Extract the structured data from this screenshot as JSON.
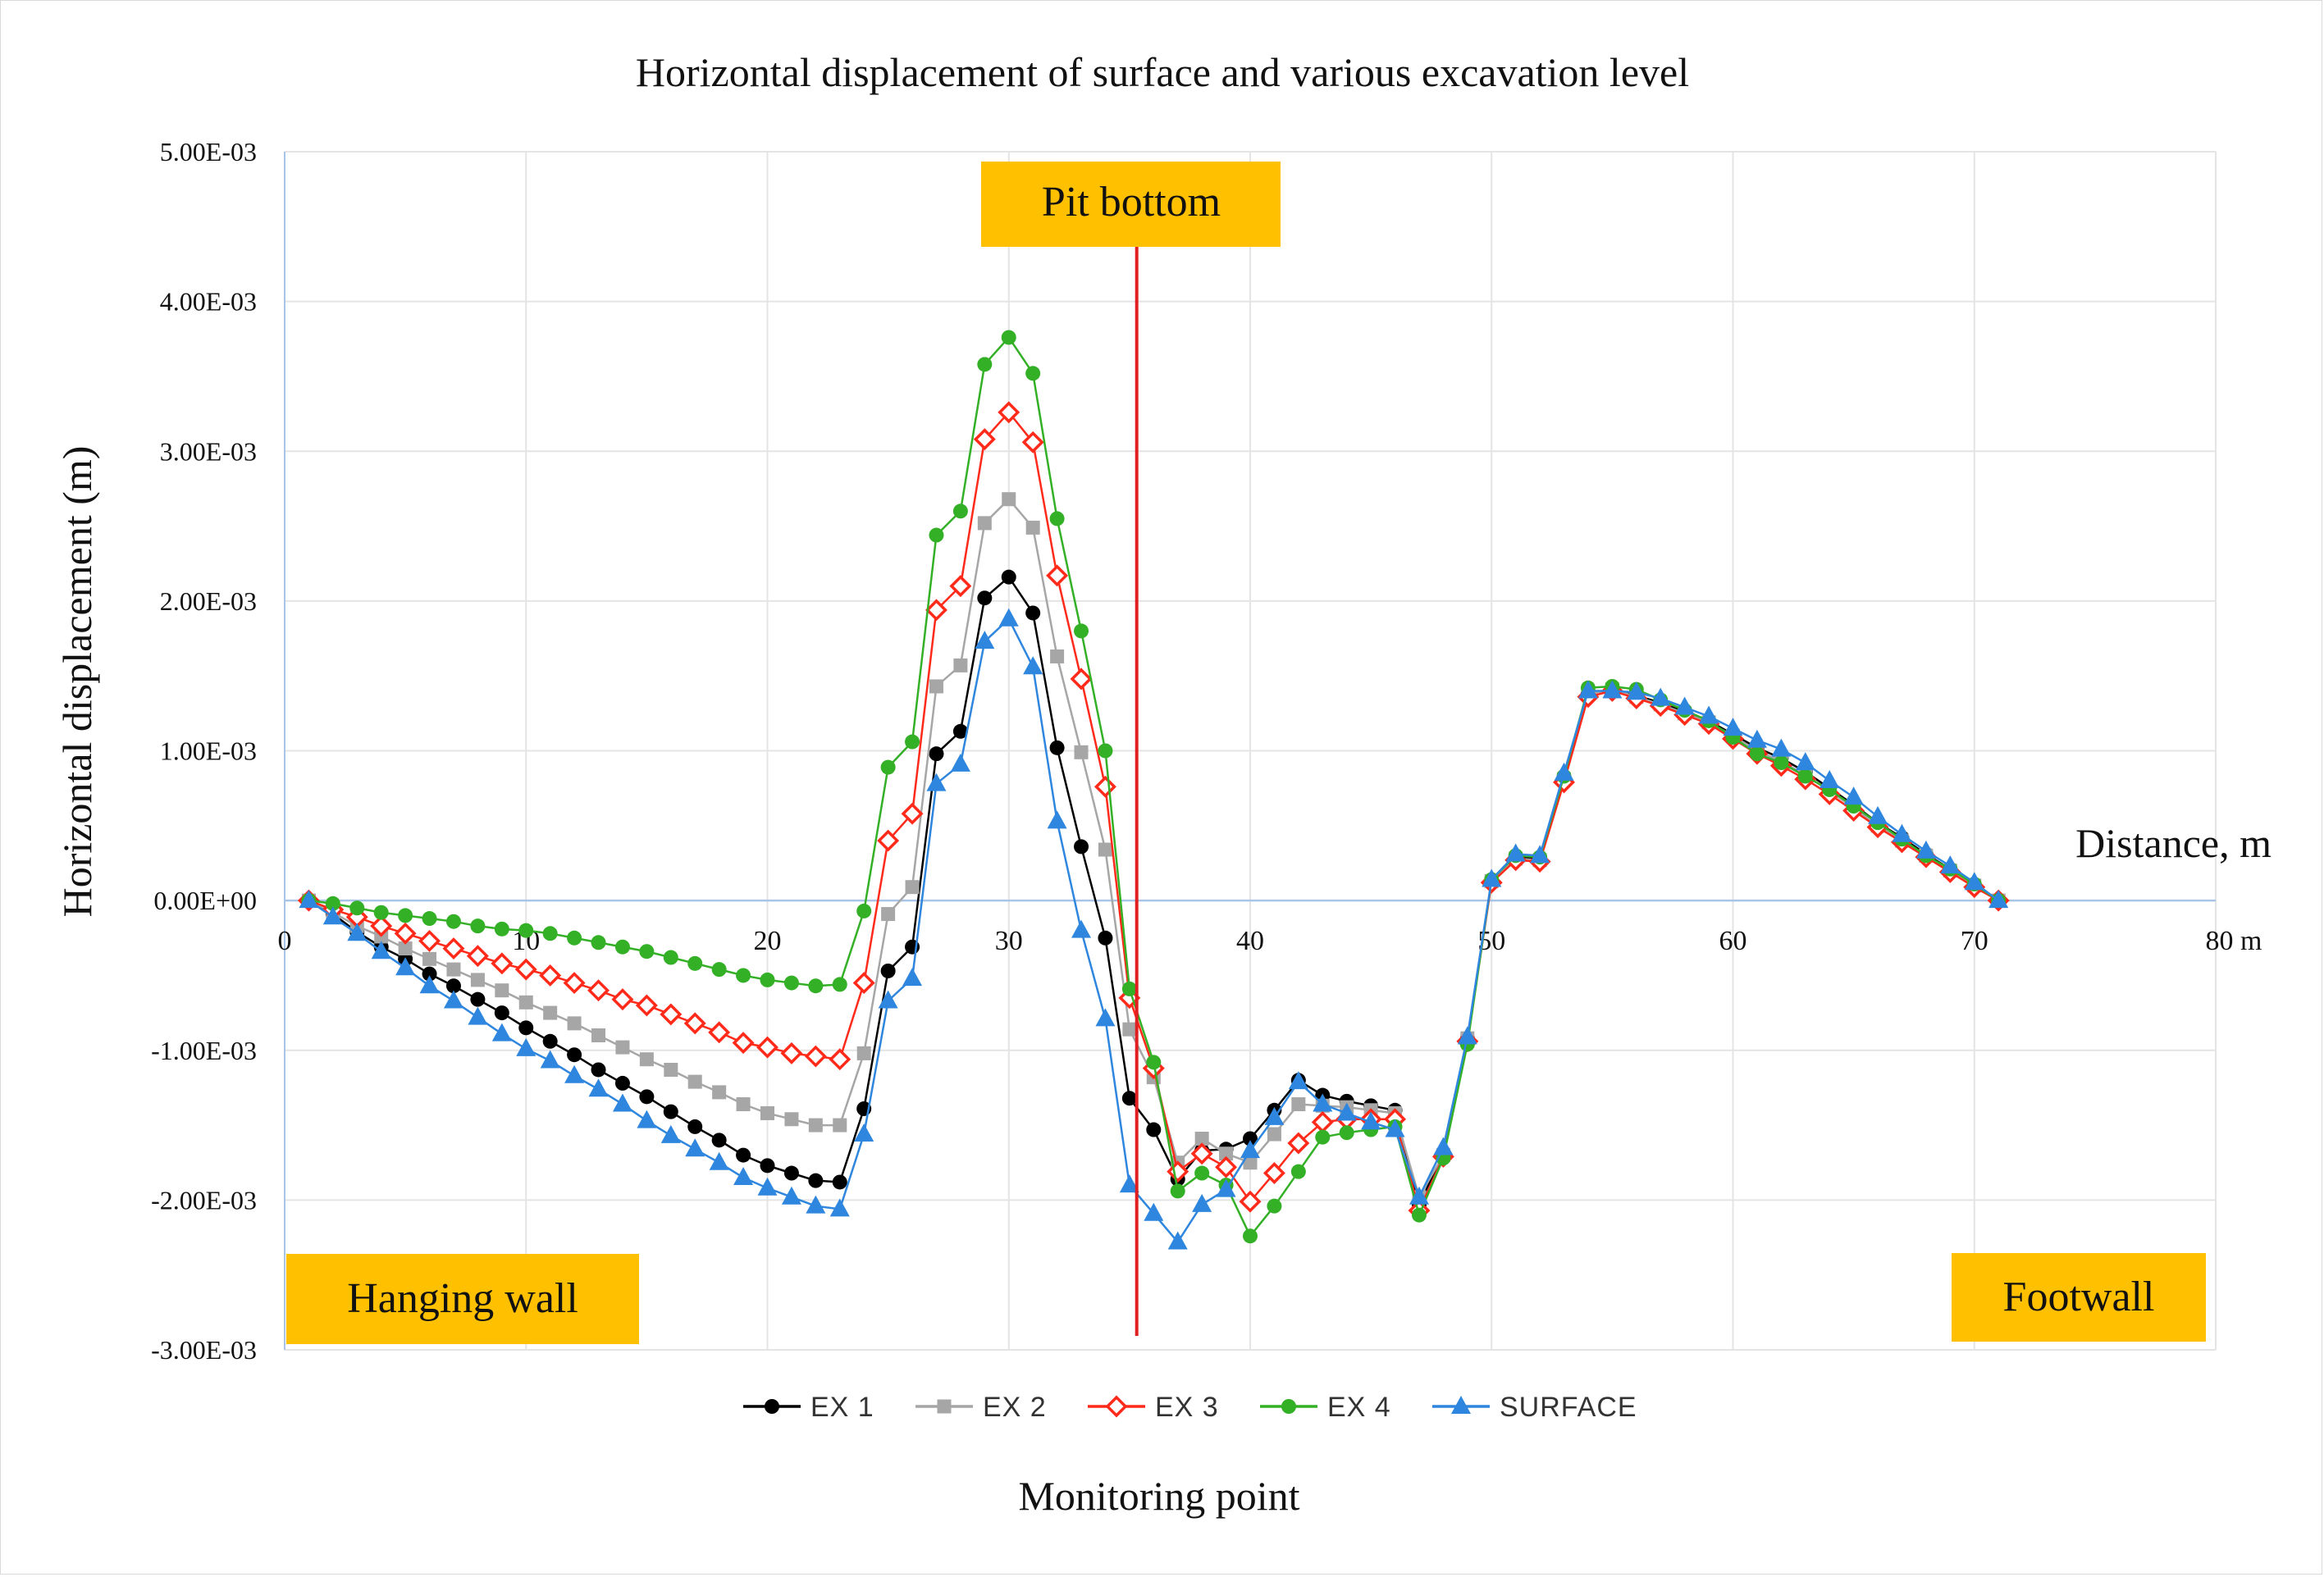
{
  "chart_data": {
    "type": "line",
    "title": "Horizontal displacement of surface and various excavation level",
    "xlabel": "Monitoring point",
    "ylabel": "Horizontal displacement (m)",
    "x_axis_inline_label": "Distance, m",
    "xlim": [
      0,
      80
    ],
    "ylim": [
      -0.003,
      0.005
    ],
    "x_ticks": [
      0,
      10,
      20,
      30,
      40,
      50,
      60,
      70,
      80
    ],
    "x_tick_labels": [
      "0",
      "10",
      "20",
      "30",
      "40",
      "50",
      "60",
      "70",
      "80 m"
    ],
    "y_ticks": [
      0.005,
      0.004,
      0.003,
      0.002,
      0.001,
      0,
      -0.001,
      -0.002,
      -0.003
    ],
    "y_tick_labels": [
      "5.00E-03",
      "4.00E-03",
      "3.00E-03",
      "2.00E-03",
      "1.00E-03",
      "0.00E+00",
      "-1.00E-03",
      "-2.00E-03",
      "-3.00E-03"
    ],
    "grid": "vertical and horizontal",
    "legend_position": "bottom",
    "annotations": [
      {
        "text": "Pit bottom",
        "position": "top-center"
      },
      {
        "text": "Hanging wall",
        "position": "bottom-left"
      },
      {
        "text": "Footwall",
        "position": "bottom-right"
      }
    ],
    "reference_line": {
      "x": 35.3,
      "color": "#e02020",
      "label": "Pit bottom"
    },
    "x": [
      1,
      2,
      3,
      4,
      5,
      6,
      7,
      8,
      9,
      10,
      11,
      12,
      13,
      14,
      15,
      16,
      17,
      18,
      19,
      20,
      21,
      22,
      23,
      24,
      25,
      26,
      27,
      28,
      29,
      30,
      31,
      32,
      33,
      34,
      35,
      36,
      37,
      38,
      39,
      40,
      41,
      42,
      43,
      44,
      45,
      46,
      47,
      48,
      49,
      50,
      51,
      52,
      53,
      54,
      55,
      56,
      57,
      58,
      59,
      60,
      61,
      62,
      63,
      64,
      65,
      66,
      67,
      68,
      69,
      70,
      71
    ],
    "series": [
      {
        "name": "EX 1",
        "color": "#000000",
        "marker": "circle",
        "values": [
          0,
          -9e-05,
          -0.00021,
          -0.00031,
          -0.00039,
          -0.00049,
          -0.00057,
          -0.00066,
          -0.00075,
          -0.00085,
          -0.00094,
          -0.00103,
          -0.00113,
          -0.00122,
          -0.00131,
          -0.00141,
          -0.00151,
          -0.0016,
          -0.0017,
          -0.00177,
          -0.00182,
          -0.00187,
          -0.00188,
          -0.00139,
          -0.00047,
          -0.00031,
          0.00098,
          0.00113,
          0.00202,
          0.00216,
          0.00192,
          0.00102,
          0.00036,
          -0.00025,
          -0.00132,
          -0.00153,
          -0.00186,
          -0.00167,
          -0.00166,
          -0.00159,
          -0.0014,
          -0.0012,
          -0.0013,
          -0.00134,
          -0.00137,
          -0.0014,
          -0.00203,
          -0.00169,
          -0.00092,
          0.00013,
          0.00029,
          0.00028,
          0.00082,
          0.00138,
          0.00141,
          0.00137,
          0.00132,
          0.00126,
          0.0012,
          0.00111,
          0.00102,
          0.00095,
          0.00086,
          0.00075,
          0.00064,
          0.00052,
          0.00042,
          0.00031,
          0.00021,
          0.0001,
          0
        ]
      },
      {
        "name": "EX 2",
        "color": "#a6a6a6",
        "marker": "square",
        "values": [
          0,
          -8e-05,
          -0.00017,
          -0.00024,
          -0.00032,
          -0.00039,
          -0.00046,
          -0.00053,
          -0.0006,
          -0.00068,
          -0.00075,
          -0.00082,
          -0.0009,
          -0.00098,
          -0.00106,
          -0.00113,
          -0.00121,
          -0.00128,
          -0.00136,
          -0.00142,
          -0.00146,
          -0.0015,
          -0.0015,
          -0.00102,
          -9e-05,
          9e-05,
          0.00143,
          0.00157,
          0.00252,
          0.00268,
          0.00249,
          0.00163,
          0.00099,
          0.00034,
          -0.00086,
          -0.00118,
          -0.00175,
          -0.00159,
          -0.00169,
          -0.00175,
          -0.00156,
          -0.00136,
          -0.00137,
          -0.00138,
          -0.0014,
          -0.00142,
          -0.00198,
          -0.0017,
          -0.00092,
          0.00013,
          0.00028,
          0.00027,
          0.00081,
          0.00138,
          0.00141,
          0.00136,
          0.00131,
          0.00125,
          0.00119,
          0.0011,
          0.001,
          0.00093,
          0.00084,
          0.00073,
          0.00062,
          0.0005,
          0.0004,
          0.0003,
          0.0002,
          0.0001,
          0
        ]
      },
      {
        "name": "EX 3",
        "color": "#ff2a1a",
        "marker": "diamond",
        "values": [
          0,
          -6e-05,
          -0.00011,
          -0.00017,
          -0.00022,
          -0.00027,
          -0.00032,
          -0.00037,
          -0.00042,
          -0.00046,
          -0.0005,
          -0.00055,
          -0.0006,
          -0.00066,
          -0.0007,
          -0.00076,
          -0.00082,
          -0.00088,
          -0.00095,
          -0.00098,
          -0.00102,
          -0.00104,
          -0.00106,
          -0.00055,
          0.0004,
          0.00058,
          0.00194,
          0.0021,
          0.00308,
          0.00326,
          0.00306,
          0.00217,
          0.00148,
          0.00076,
          -0.00065,
          -0.00112,
          -0.00181,
          -0.00169,
          -0.00178,
          -0.00201,
          -0.00182,
          -0.00162,
          -0.00148,
          -0.00146,
          -0.00146,
          -0.00146,
          -0.00207,
          -0.00171,
          -0.00094,
          0.00012,
          0.00027,
          0.00026,
          0.00079,
          0.00136,
          0.0014,
          0.00135,
          0.0013,
          0.00124,
          0.00118,
          0.00108,
          0.00098,
          0.0009,
          0.00081,
          0.00071,
          0.0006,
          0.00049,
          0.00039,
          0.00029,
          0.00019,
          9e-05,
          0
        ]
      },
      {
        "name": "EX 4",
        "color": "#33b026",
        "marker": "circle",
        "values": [
          0,
          -2e-05,
          -5e-05,
          -8e-05,
          -0.0001,
          -0.00012,
          -0.00014,
          -0.00017,
          -0.00019,
          -0.0002,
          -0.00022,
          -0.00025,
          -0.00028,
          -0.00031,
          -0.00034,
          -0.00038,
          -0.00042,
          -0.00046,
          -0.0005,
          -0.00053,
          -0.00055,
          -0.00057,
          -0.00056,
          -7e-05,
          0.00089,
          0.00106,
          0.00244,
          0.0026,
          0.00358,
          0.00376,
          0.00352,
          0.00255,
          0.0018,
          0.001,
          -0.00059,
          -0.00108,
          -0.00194,
          -0.00182,
          -0.0019,
          -0.00224,
          -0.00204,
          -0.00181,
          -0.00158,
          -0.00155,
          -0.00153,
          -0.00151,
          -0.0021,
          -0.00172,
          -0.00096,
          0.00014,
          0.0003,
          0.00029,
          0.00083,
          0.00142,
          0.00143,
          0.00141,
          0.00134,
          0.00127,
          0.0012,
          0.00109,
          0.00098,
          0.00092,
          0.00083,
          0.00074,
          0.00063,
          0.00052,
          0.00041,
          0.0003,
          0.00021,
          0.00011,
          0
        ]
      },
      {
        "name": "SURFACE",
        "color": "#2e86de",
        "marker": "triangle",
        "values": [
          0,
          -0.00011,
          -0.00022,
          -0.00034,
          -0.00045,
          -0.00057,
          -0.00067,
          -0.00078,
          -0.00089,
          -0.00099,
          -0.00107,
          -0.00117,
          -0.00126,
          -0.00136,
          -0.00147,
          -0.00157,
          -0.00166,
          -0.00175,
          -0.00185,
          -0.00192,
          -0.00198,
          -0.00204,
          -0.00206,
          -0.00156,
          -0.00067,
          -0.00052,
          0.00078,
          0.00091,
          0.00173,
          0.00188,
          0.00156,
          0.00053,
          -0.0002,
          -0.00079,
          -0.0019,
          -0.00209,
          -0.00228,
          -0.00203,
          -0.00193,
          -0.00167,
          -0.00145,
          -0.00121,
          -0.00136,
          -0.00142,
          -0.00148,
          -0.00153,
          -0.00198,
          -0.00165,
          -0.00091,
          0.00014,
          0.00031,
          0.0003,
          0.00085,
          0.0014,
          0.0014,
          0.00139,
          0.00135,
          0.00129,
          0.00123,
          0.00115,
          0.00107,
          0.00101,
          0.00092,
          0.0008,
          0.00069,
          0.00056,
          0.00044,
          0.00033,
          0.00023,
          0.00012,
          0
        ]
      }
    ]
  }
}
